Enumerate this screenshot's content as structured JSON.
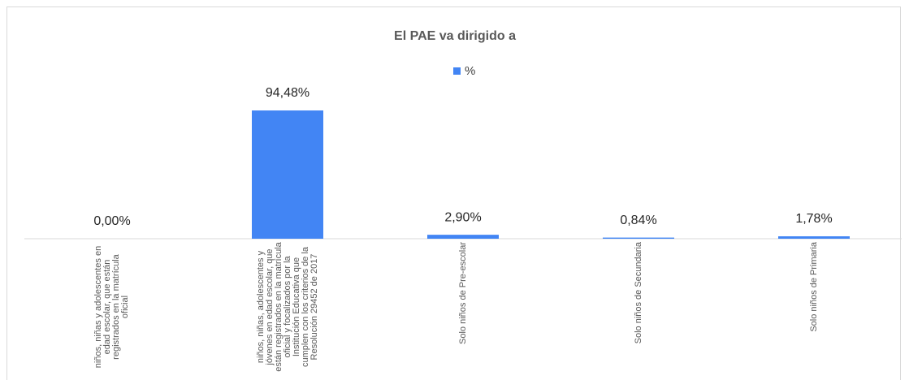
{
  "chart_data": {
    "type": "bar",
    "title": "El PAE va dirigido  a",
    "categories": [
      "niños, niñas y adolescentes en edad escolar, que están registrados en la matrícula oficial",
      "niños, niñas, adolescentes y jóvenes en edad escolar, que están registrados en la matrícula oficial y focalizados por la Institución Educativa que cumplen con los criterios de la Resolución 29452 de 2017",
      "Solo niños de Pre-escolar",
      "Solo niños de Secundaria",
      "Solo niños de Primaria"
    ],
    "series": [
      {
        "name": "%",
        "color": "#4285f4",
        "values": [
          0,
          94.48,
          2.9,
          0.84,
          1.78
        ],
        "value_labels": [
          "0,00%",
          "94,48%",
          "2,90%",
          "0,84%",
          "1,78%"
        ]
      }
    ],
    "legend": "top"
  }
}
